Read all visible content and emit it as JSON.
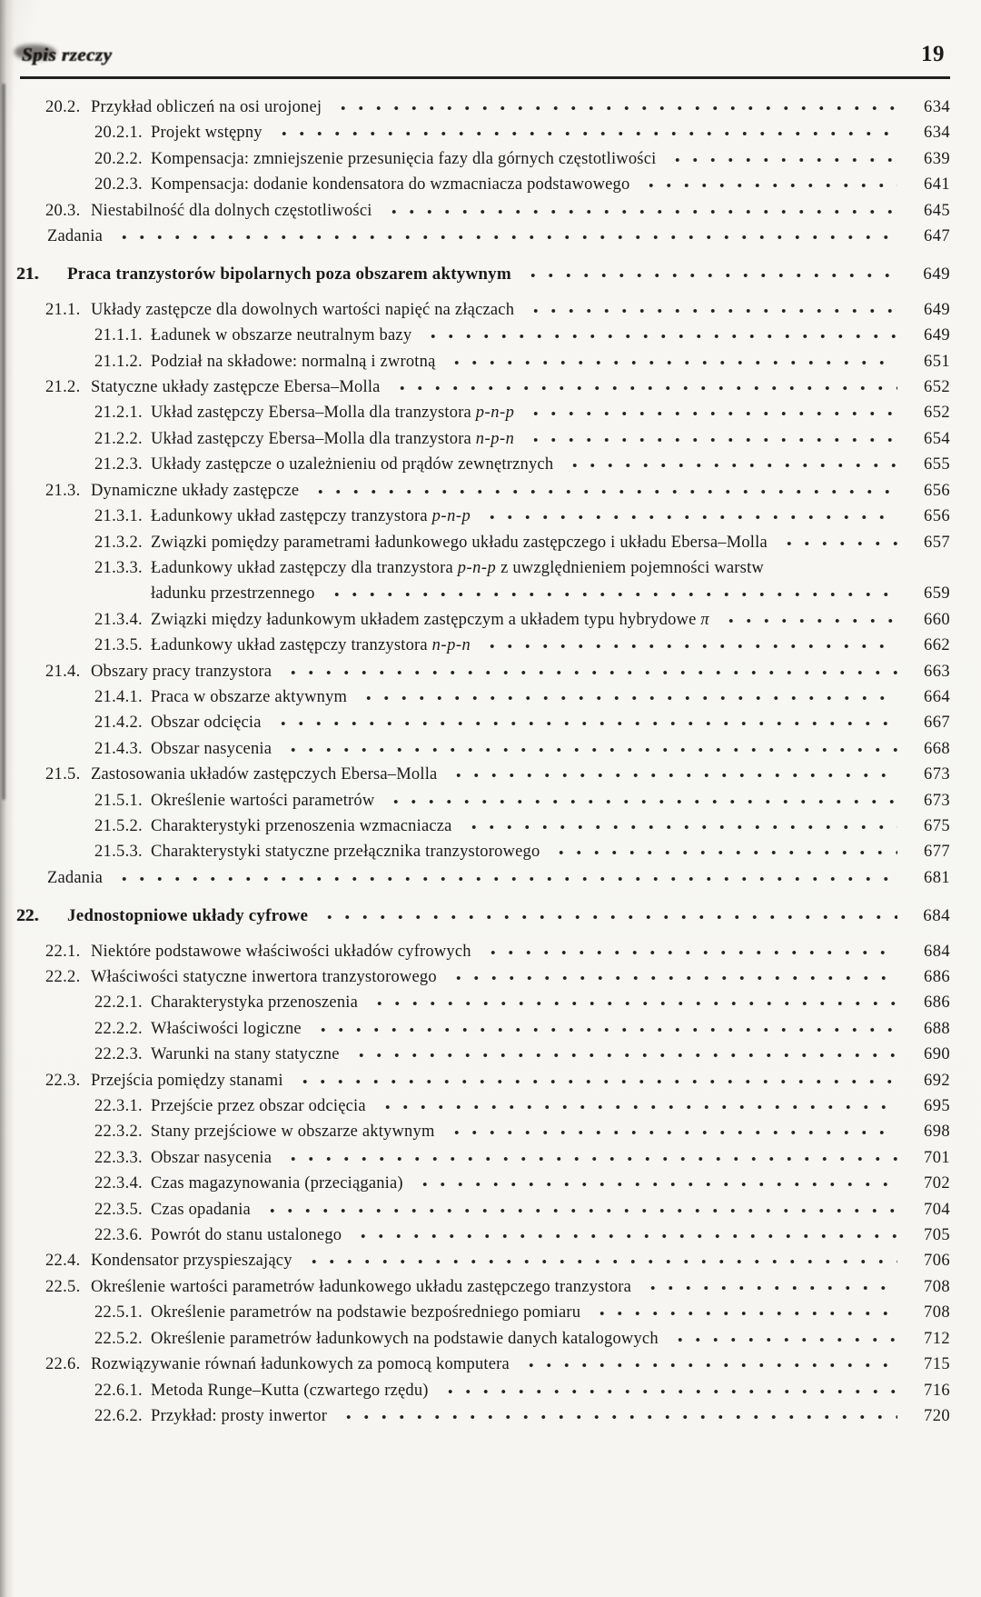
{
  "header": {
    "running_title": "Spis rzeczy",
    "page_number": "19"
  },
  "em_tokens": [
    "p-n-p",
    "n-p-n",
    "π"
  ],
  "toc": [
    {
      "level": 1,
      "num": "20.2.",
      "title": "Przykład obliczeń na osi urojonej",
      "page": "634"
    },
    {
      "level": 2,
      "num": "20.2.1.",
      "title": "Projekt wstępny",
      "page": "634"
    },
    {
      "level": 2,
      "num": "20.2.2.",
      "title": "Kompensacja: zmniejszenie przesunięcia fazy dla górnych częstotliwości",
      "page": "639"
    },
    {
      "level": 2,
      "num": "20.2.3.",
      "title": "Kompensacja: dodanie kondensatora do wzmacniacza podstawowego",
      "page": "641"
    },
    {
      "level": 1,
      "num": "20.3.",
      "title": "Niestabilność dla dolnych częstotliwości",
      "page": "645"
    },
    {
      "level": "z",
      "num": "",
      "title": "Zadania",
      "page": "647"
    },
    {
      "level": 0,
      "num": "21.",
      "title": "Praca tranzystorów bipolarnych poza obszarem aktywnym",
      "page": "649"
    },
    {
      "level": 1,
      "num": "21.1.",
      "title": "Układy zastępcze dla dowolnych wartości napięć na złączach",
      "page": "649"
    },
    {
      "level": 2,
      "num": "21.1.1.",
      "title": "Ładunek w obszarze neutralnym bazy",
      "page": "649"
    },
    {
      "level": 2,
      "num": "21.1.2.",
      "title": "Podział na składowe: normalną i zwrotną",
      "page": "651"
    },
    {
      "level": 1,
      "num": "21.2.",
      "title": "Statyczne układy zastępcze Ebersa–Molla",
      "page": "652"
    },
    {
      "level": 2,
      "num": "21.2.1.",
      "title": "Układ zastępczy Ebersa–Molla dla tranzystora p-n-p",
      "page": "652"
    },
    {
      "level": 2,
      "num": "21.2.2.",
      "title": "Układ zastępczy Ebersa–Molla dla tranzystora n-p-n",
      "page": "654"
    },
    {
      "level": 2,
      "num": "21.2.3.",
      "title": "Układy zastępcze o uzależnieniu od prądów zewnętrznych",
      "page": "655"
    },
    {
      "level": 1,
      "num": "21.3.",
      "title": "Dynamiczne układy zastępcze",
      "page": "656"
    },
    {
      "level": 2,
      "num": "21.3.1.",
      "title": "Ładunkowy układ zastępczy tranzystora p-n-p",
      "page": "656"
    },
    {
      "level": 2,
      "num": "21.3.2.",
      "title": "Związki pomiędzy parametrami ładunkowego układu zastępczego i układu Ebersa–Molla",
      "page": "657"
    },
    {
      "level": 2,
      "num": "21.3.3.",
      "title": "Ładunkowy układ zastępczy dla tranzystora p-n-p z uwzględnieniem pojemności warstw",
      "cont": "ładunku przestrzennego",
      "page": "659"
    },
    {
      "level": 2,
      "num": "21.3.4.",
      "title": "Związki między ładunkowym układem zastępczym a układem typu hybrydowe π",
      "page": "660"
    },
    {
      "level": 2,
      "num": "21.3.5.",
      "title": "Ładunkowy układ zastępczy tranzystora n-p-n",
      "page": "662"
    },
    {
      "level": 1,
      "num": "21.4.",
      "title": "Obszary pracy tranzystora",
      "page": "663"
    },
    {
      "level": 2,
      "num": "21.4.1.",
      "title": "Praca w obszarze aktywnym",
      "page": "664"
    },
    {
      "level": 2,
      "num": "21.4.2.",
      "title": "Obszar odcięcia",
      "page": "667"
    },
    {
      "level": 2,
      "num": "21.4.3.",
      "title": "Obszar nasycenia",
      "page": "668"
    },
    {
      "level": 1,
      "num": "21.5.",
      "title": "Zastosowania układów zastępczych Ebersa–Molla",
      "page": "673"
    },
    {
      "level": 2,
      "num": "21.5.1.",
      "title": "Określenie wartości parametrów",
      "page": "673"
    },
    {
      "level": 2,
      "num": "21.5.2.",
      "title": "Charakterystyki przenoszenia wzmacniacza",
      "page": "675"
    },
    {
      "level": 2,
      "num": "21.5.3.",
      "title": "Charakterystyki statyczne przełącznika tranzystorowego",
      "page": "677"
    },
    {
      "level": "z",
      "num": "",
      "title": "Zadania",
      "page": "681"
    },
    {
      "level": 0,
      "num": "22.",
      "title": "Jednostopniowe układy cyfrowe",
      "page": "684"
    },
    {
      "level": 1,
      "num": "22.1.",
      "title": "Niektóre podstawowe właściwości układów cyfrowych",
      "page": "684"
    },
    {
      "level": 1,
      "num": "22.2.",
      "title": "Właściwości statyczne inwertora tranzystorowego",
      "page": "686"
    },
    {
      "level": 2,
      "num": "22.2.1.",
      "title": "Charakterystyka przenoszenia",
      "page": "686"
    },
    {
      "level": 2,
      "num": "22.2.2.",
      "title": "Właściwości logiczne",
      "page": "688"
    },
    {
      "level": 2,
      "num": "22.2.3.",
      "title": "Warunki na stany statyczne",
      "page": "690"
    },
    {
      "level": 1,
      "num": "22.3.",
      "title": "Przejścia pomiędzy stanami",
      "page": "692"
    },
    {
      "level": 2,
      "num": "22.3.1.",
      "title": "Przejście przez obszar odcięcia",
      "page": "695"
    },
    {
      "level": 2,
      "num": "22.3.2.",
      "title": "Stany przejściowe w obszarze aktywnym",
      "page": "698"
    },
    {
      "level": 2,
      "num": "22.3.3.",
      "title": "Obszar nasycenia",
      "page": "701"
    },
    {
      "level": 2,
      "num": "22.3.4.",
      "title": "Czas magazynowania (przeciągania)",
      "page": "702"
    },
    {
      "level": 2,
      "num": "22.3.5.",
      "title": "Czas opadania",
      "page": "704"
    },
    {
      "level": 2,
      "num": "22.3.6.",
      "title": "Powrót do stanu ustalonego",
      "page": "705"
    },
    {
      "level": 1,
      "num": "22.4.",
      "title": "Kondensator przyspieszający",
      "page": "706"
    },
    {
      "level": 1,
      "num": "22.5.",
      "title": "Określenie wartości parametrów ładunkowego układu zastępczego tranzystora",
      "page": "708"
    },
    {
      "level": 2,
      "num": "22.5.1.",
      "title": "Określenie parametrów na podstawie bezpośredniego pomiaru",
      "page": "708"
    },
    {
      "level": 2,
      "num": "22.5.2.",
      "title": "Określenie parametrów ładunkowych na podstawie danych katalogowych",
      "page": "712"
    },
    {
      "level": 1,
      "num": "22.6.",
      "title": "Rozwiązywanie równań ładunkowych za pomocą komputera",
      "page": "715"
    },
    {
      "level": 2,
      "num": "22.6.1.",
      "title": "Metoda Runge–Kutta (czwartego rzędu)",
      "page": "716"
    },
    {
      "level": 2,
      "num": "22.6.2.",
      "title": "Przykład: prosty inwertor",
      "page": "720"
    }
  ]
}
